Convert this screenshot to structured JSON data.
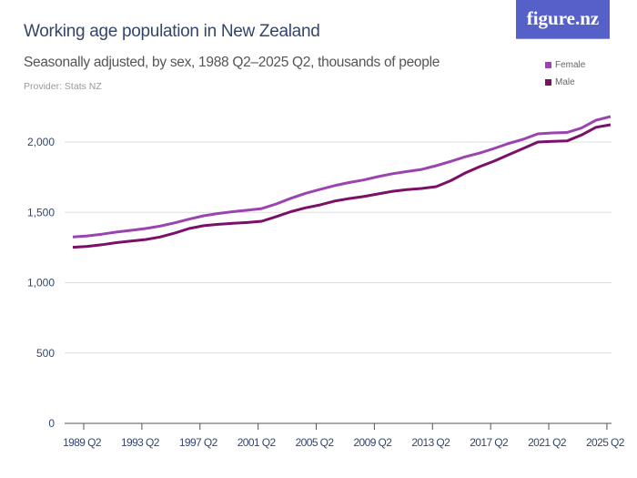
{
  "header": {
    "title": "Working age population in New Zealand",
    "subtitle": "Seasonally adjusted, by sex, 1988 Q2–2025 Q2, thousands of people",
    "provider": "Provider: Stats NZ",
    "logo": "figure.nz"
  },
  "chart_data": {
    "type": "line",
    "title": "Working age population in New Zealand",
    "subtitle": "Seasonally adjusted, by sex, 1988 Q2–2025 Q2, thousands of people",
    "x": [
      1988,
      1989,
      1990,
      1991,
      1992,
      1993,
      1994,
      1995,
      1996,
      1997,
      1998,
      1999,
      2000,
      2001,
      2002,
      2003,
      2004,
      2005,
      2006,
      2007,
      2008,
      2009,
      2010,
      2011,
      2012,
      2013,
      2014,
      2015,
      2016,
      2017,
      2018,
      2019,
      2020,
      2021,
      2022,
      2023,
      2024,
      2025
    ],
    "series": [
      {
        "name": "Female",
        "color": "#9b44b0",
        "values": [
          1325,
          1333,
          1345,
          1360,
          1372,
          1385,
          1402,
          1425,
          1452,
          1476,
          1492,
          1505,
          1515,
          1527,
          1560,
          1600,
          1635,
          1663,
          1690,
          1712,
          1730,
          1754,
          1775,
          1790,
          1805,
          1832,
          1862,
          1895,
          1922,
          1955,
          1990,
          2020,
          2058,
          2065,
          2068,
          2100,
          2155,
          2181
        ]
      },
      {
        "name": "Male",
        "color": "#7a1068",
        "values": [
          1252,
          1258,
          1270,
          1285,
          1296,
          1307,
          1325,
          1352,
          1385,
          1405,
          1415,
          1422,
          1428,
          1437,
          1470,
          1505,
          1532,
          1553,
          1580,
          1598,
          1612,
          1631,
          1650,
          1662,
          1670,
          1683,
          1725,
          1780,
          1825,
          1865,
          1910,
          1955,
          2000,
          2005,
          2008,
          2050,
          2105,
          2123
        ]
      }
    ],
    "x_ticks": [
      "1989 Q2",
      "1993 Q2",
      "1997 Q2",
      "2001 Q2",
      "2005 Q2",
      "2009 Q2",
      "2013 Q2",
      "2017 Q2",
      "2021 Q2",
      "2025 Q2"
    ],
    "y_ticks": [
      0,
      500,
      1000,
      1500,
      2000
    ],
    "y_tick_labels": [
      "0",
      "500",
      "1,000",
      "1,500",
      "2,000"
    ],
    "ylim": [
      0,
      2250
    ],
    "grid": true,
    "legend": "top-right"
  }
}
